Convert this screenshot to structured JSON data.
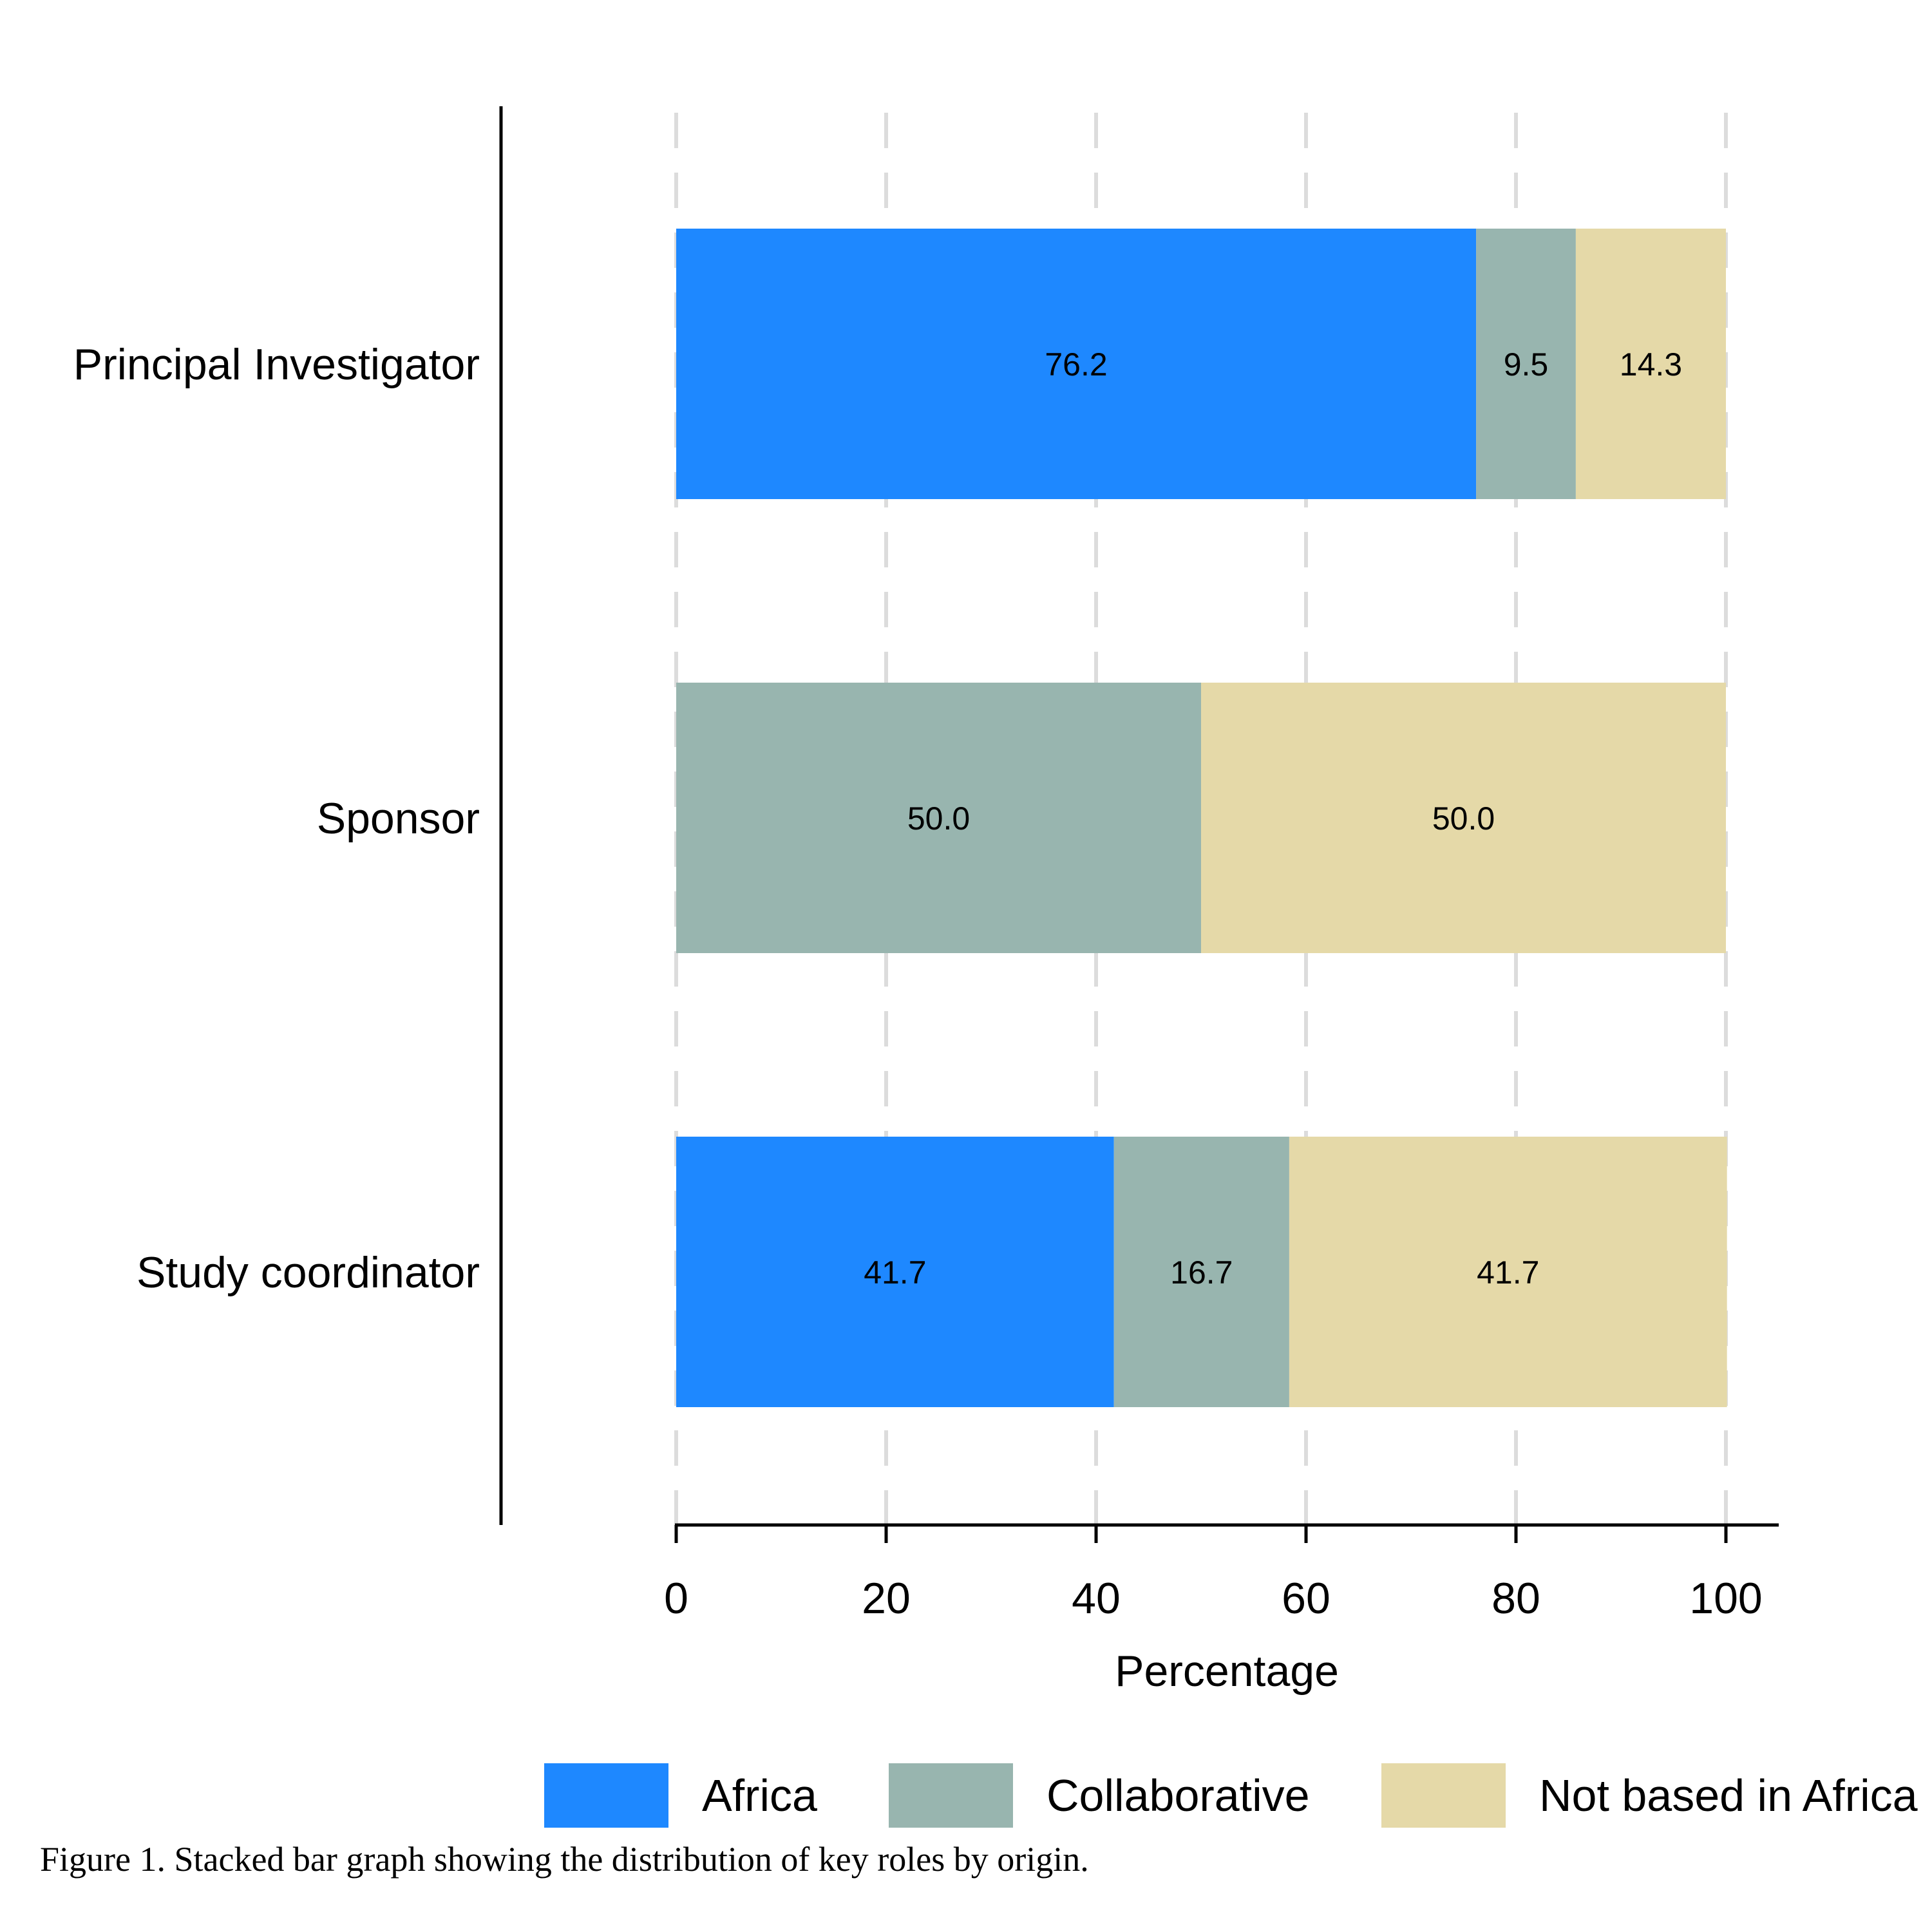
{
  "chart_data": {
    "type": "bar",
    "orientation": "horizontal",
    "stacked": true,
    "categories": [
      "Principal Investigator",
      "Sponsor",
      "Study coordinator"
    ],
    "series": [
      {
        "name": "Africa",
        "color": "#1E88FF",
        "values": [
          76.2,
          0,
          41.7
        ]
      },
      {
        "name": "Collaborative",
        "color": "#98B5AF",
        "values": [
          9.5,
          50.0,
          16.7
        ]
      },
      {
        "name": "Not based in Africa",
        "color": "#E5D9A8",
        "values": [
          14.3,
          50.0,
          41.7
        ]
      }
    ],
    "value_labels": [
      [
        "76.2",
        "",
        "41.7"
      ],
      [
        "9.5",
        "50.0",
        "16.7"
      ],
      [
        "14.3",
        "50.0",
        "41.7"
      ]
    ],
    "xlabel": "Percentage",
    "ylabel": "",
    "xlim": [
      0,
      100
    ],
    "xticks": [
      0,
      20,
      40,
      60,
      80,
      100
    ],
    "grid": "vertical dashed",
    "legend_position": "bottom"
  },
  "caption": "Figure 1. Stacked bar graph showing the distribution of key roles by origin."
}
